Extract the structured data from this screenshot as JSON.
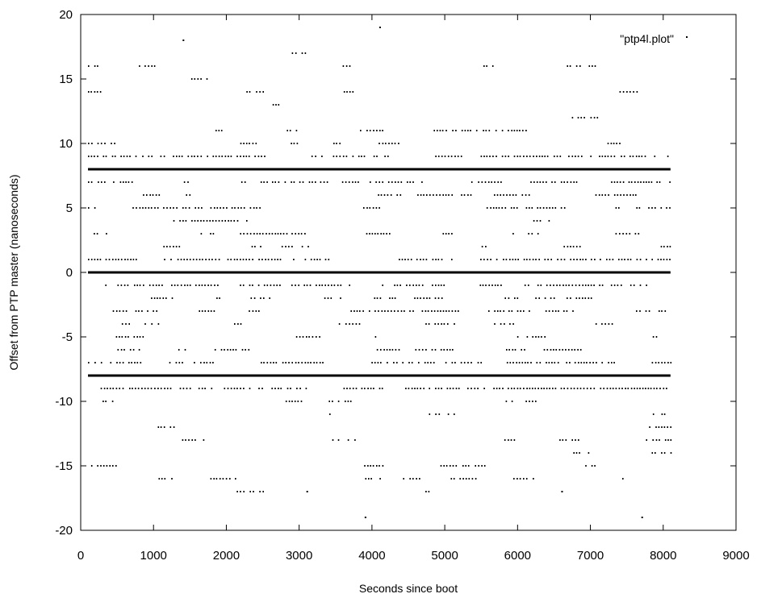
{
  "chart_data": {
    "type": "scatter",
    "title": "",
    "xlabel": "Seconds since boot",
    "ylabel": "Offset from PTP master (nanoseconds)",
    "xlim": [
      0,
      9000
    ],
    "ylim": [
      -20,
      20
    ],
    "xticks": [
      0,
      1000,
      2000,
      3000,
      4000,
      5000,
      6000,
      7000,
      8000,
      9000
    ],
    "yticks": [
      -20,
      -15,
      -10,
      -5,
      0,
      5,
      10,
      15,
      20
    ],
    "grid": false,
    "legend_position": "top-right",
    "series": [
      {
        "name": "\"ptp4l.plot\"",
        "color": "#000000",
        "x_range": [
          100,
          8100
        ],
        "offset_levels": [
          {
            "y": 0,
            "density": 1.0
          },
          {
            "y": 8,
            "density": 1.0
          },
          {
            "y": -8,
            "density": 1.0
          },
          {
            "y": 1,
            "density": 0.9
          },
          {
            "y": -1,
            "density": 0.9
          },
          {
            "y": 9,
            "density": 0.8
          },
          {
            "y": -9,
            "density": 0.8
          },
          {
            "y": 7,
            "density": 0.8
          },
          {
            "y": -7,
            "density": 0.8
          },
          {
            "y": 3,
            "density": 0.45
          },
          {
            "y": -3,
            "density": 0.45
          },
          {
            "y": 5,
            "density": 0.45
          },
          {
            "y": -5,
            "density": 0.45
          },
          {
            "y": 2,
            "density": 0.3
          },
          {
            "y": -2,
            "density": 0.3
          },
          {
            "y": 4,
            "density": 0.3
          },
          {
            "y": -4,
            "density": 0.3
          },
          {
            "y": 6,
            "density": 0.3
          },
          {
            "y": -6,
            "density": 0.3
          },
          {
            "y": 10,
            "density": 0.22
          },
          {
            "y": -10,
            "density": 0.22
          },
          {
            "y": 11,
            "density": 0.2
          },
          {
            "y": -11,
            "density": 0.2
          },
          {
            "y": 13,
            "density": 0.15
          },
          {
            "y": -13,
            "density": 0.15
          },
          {
            "y": 16,
            "density": 0.2
          },
          {
            "y": -16,
            "density": 0.2
          },
          {
            "y": 12,
            "density": 0.08
          },
          {
            "y": -12,
            "density": 0.08
          },
          {
            "y": 14,
            "density": 0.06
          },
          {
            "y": -14,
            "density": 0.06
          },
          {
            "y": 15,
            "density": 0.12
          },
          {
            "y": -15,
            "density": 0.12
          },
          {
            "y": 17,
            "density": 0.04
          },
          {
            "y": -17,
            "density": 0.03
          }
        ],
        "outliers": [
          {
            "x": 1400,
            "y": 18
          },
          {
            "x": 4100,
            "y": 19
          },
          {
            "x": 3900,
            "y": -19
          },
          {
            "x": 7700,
            "y": -19
          },
          {
            "x": 3100,
            "y": -17
          },
          {
            "x": 6600,
            "y": -17
          }
        ]
      }
    ]
  }
}
